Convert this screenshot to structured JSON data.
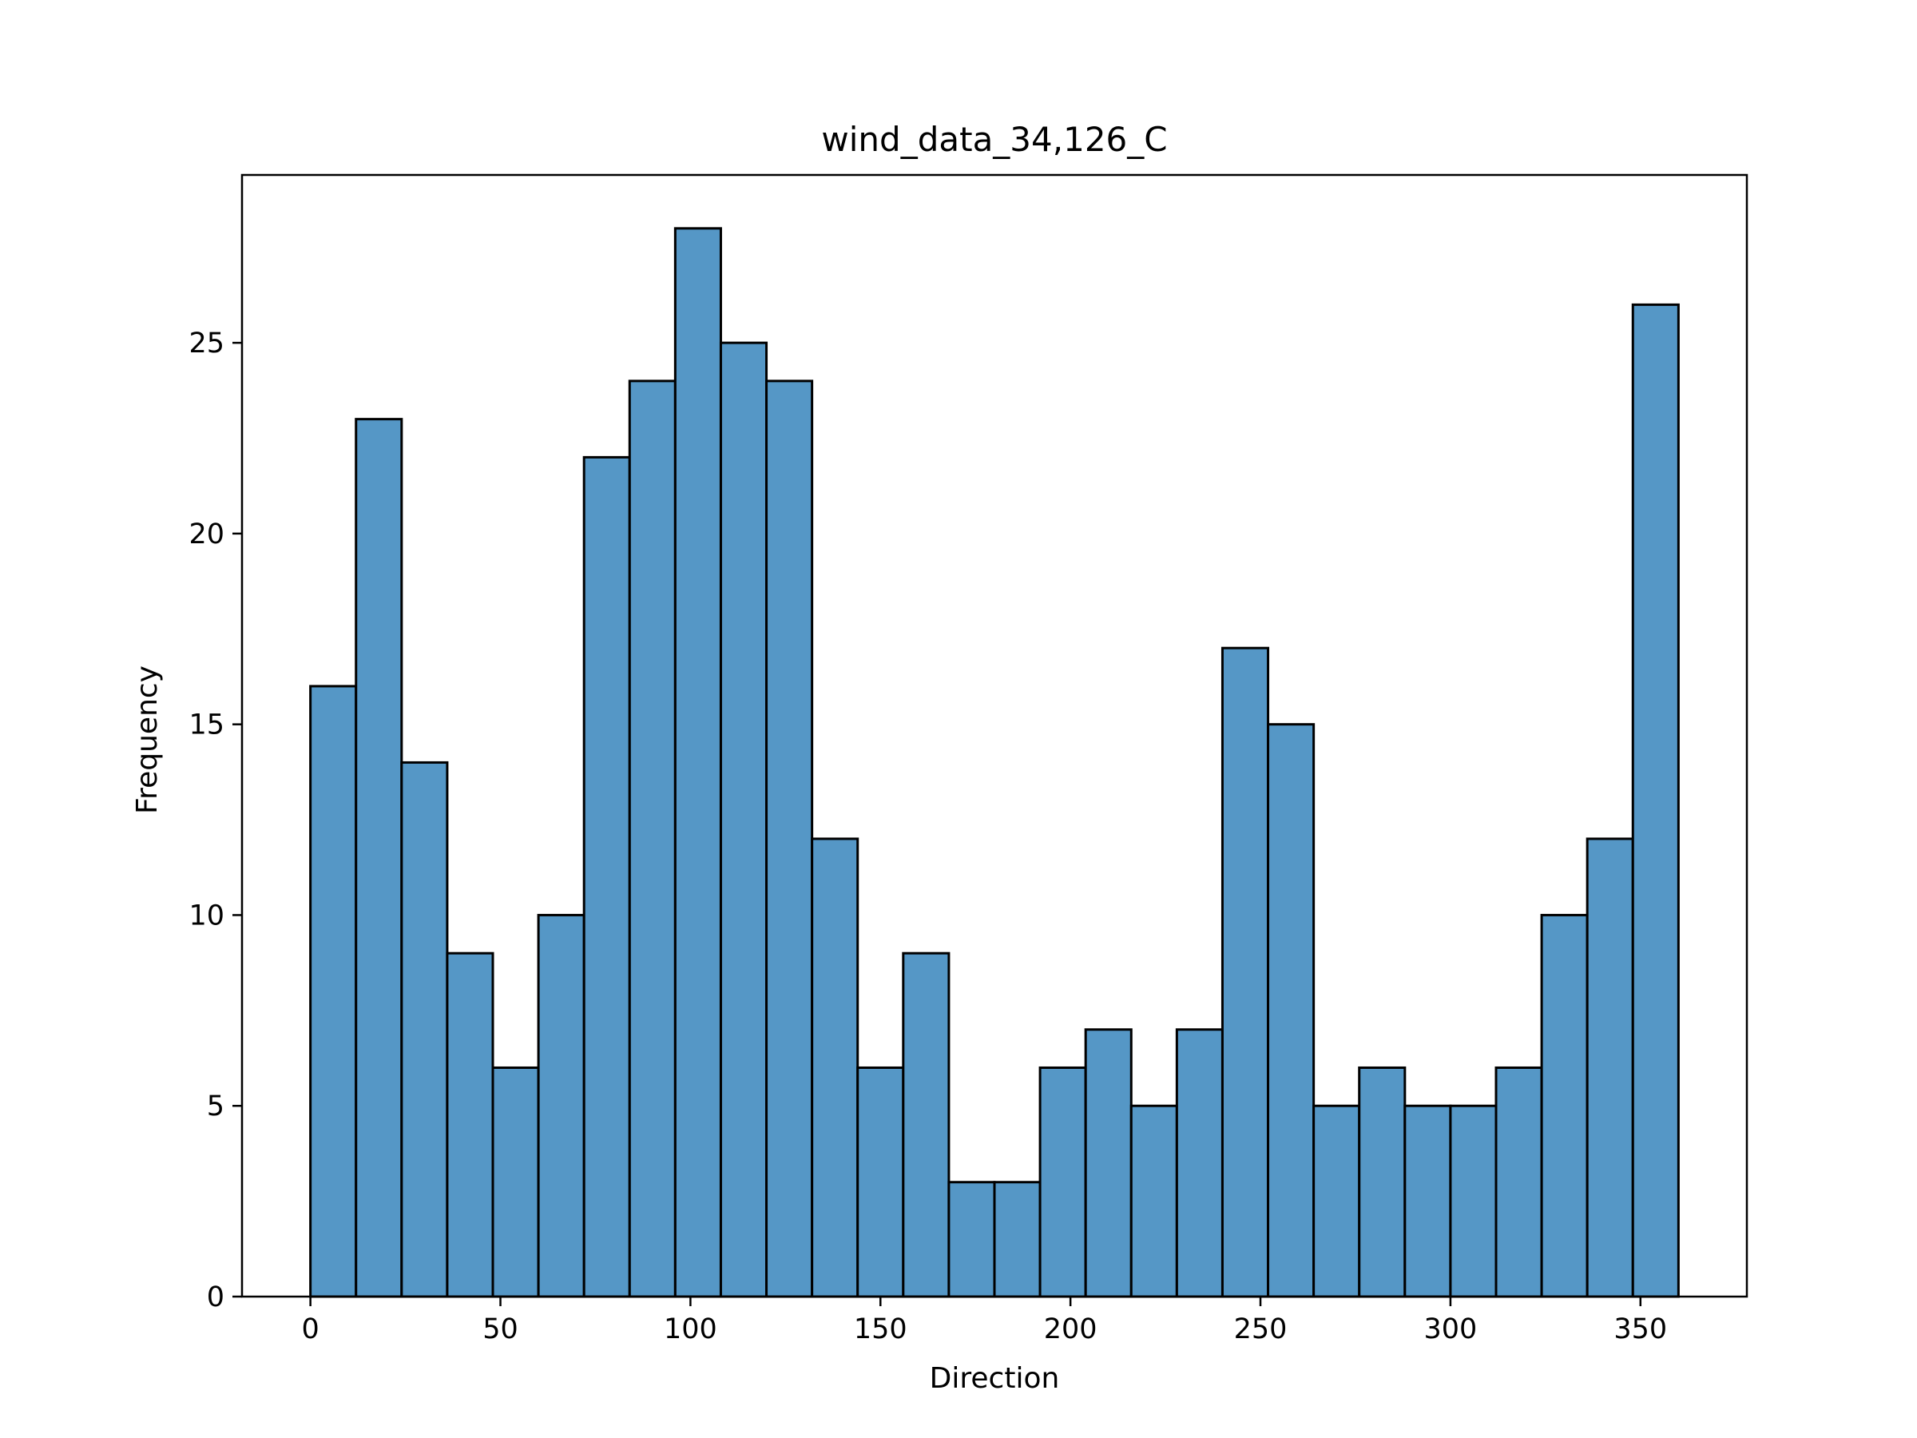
{
  "chart_data": {
    "type": "bar",
    "title": "wind_data_34,126_C",
    "xlabel": "Direction",
    "ylabel": "Frequency",
    "xlim": [
      -18,
      378
    ],
    "ylim": [
      0,
      29.4
    ],
    "grid": false,
    "bins": {
      "start": 0,
      "width": 12,
      "values": [
        16,
        23,
        14,
        9,
        6,
        10,
        22,
        24,
        28,
        25,
        24,
        12,
        6,
        9,
        3,
        3,
        6,
        7,
        5,
        7,
        17,
        15,
        5,
        6,
        5,
        5,
        6,
        10,
        12,
        26
      ]
    },
    "x_ticks": [
      0,
      50,
      100,
      150,
      200,
      250,
      300,
      350
    ],
    "y_ticks": [
      0,
      5,
      10,
      15,
      20,
      25
    ],
    "colors": {
      "bar_fill": "#5597c6",
      "bar_edge": "#000000"
    }
  }
}
